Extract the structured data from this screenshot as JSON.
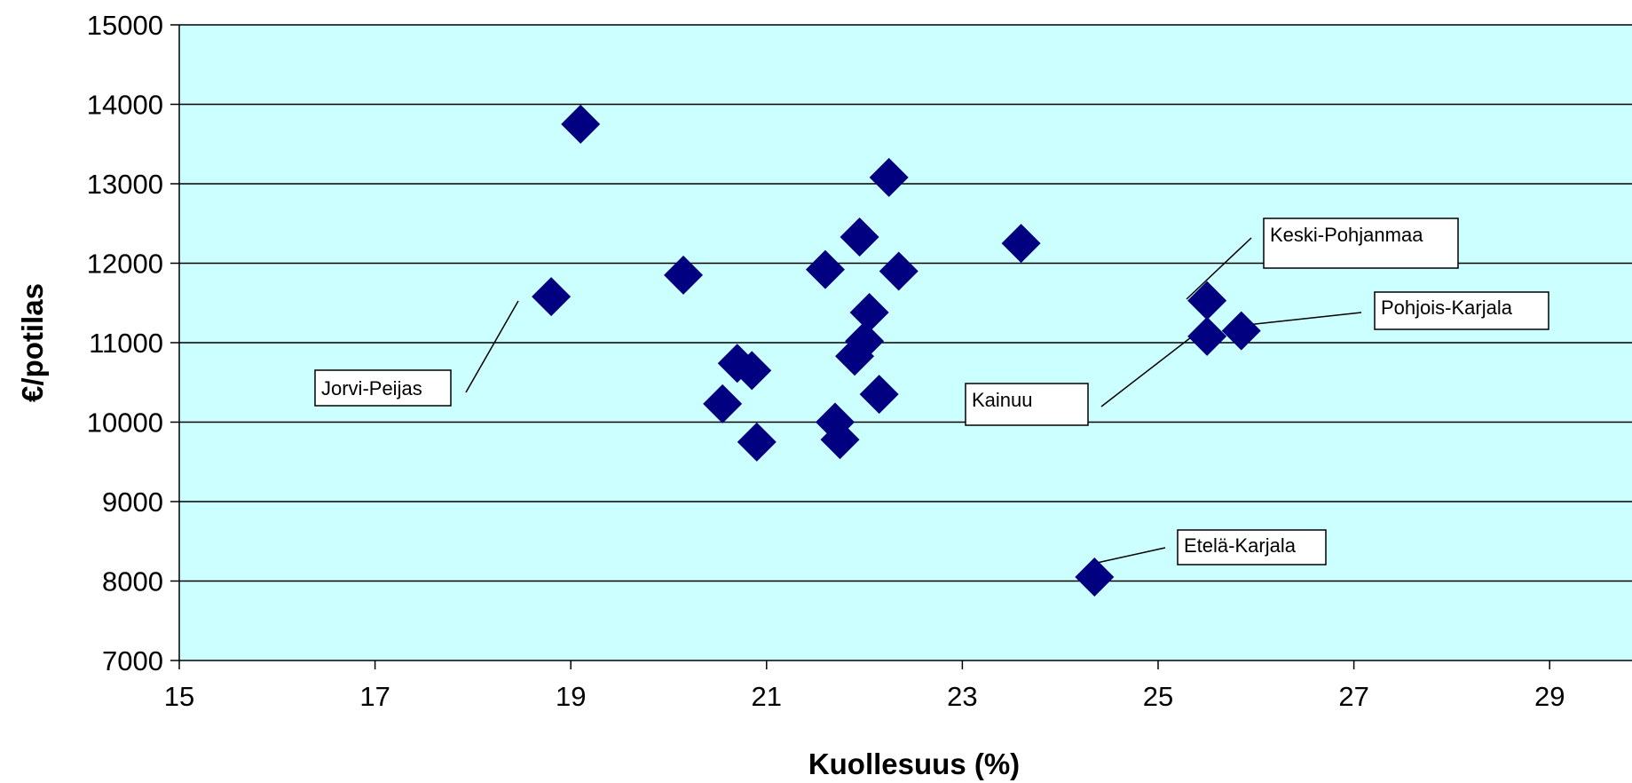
{
  "chart_data": {
    "type": "scatter",
    "xlabel": "Kuollesuus (%)",
    "ylabel": "€/potilas",
    "xlim": [
      15,
      30
    ],
    "ylim": [
      7000,
      15000
    ],
    "x_ticks": [
      "15",
      "17",
      "19",
      "21",
      "23",
      "25",
      "27",
      "29"
    ],
    "y_ticks": [
      "15000",
      "14000",
      "13000",
      "12000",
      "11000",
      "10000",
      "9000",
      "8000",
      "7000"
    ],
    "grid": "horizontal",
    "plot_background": "#ccffff",
    "marker_color": "#000080",
    "marker": "diamond",
    "points": [
      {
        "x": 19.1,
        "y": 13750
      },
      {
        "x": 18.8,
        "y": 11580
      },
      {
        "x": 20.15,
        "y": 11850
      },
      {
        "x": 20.7,
        "y": 10740
      },
      {
        "x": 20.85,
        "y": 10650
      },
      {
        "x": 20.55,
        "y": 10230
      },
      {
        "x": 20.9,
        "y": 9750
      },
      {
        "x": 21.6,
        "y": 11920
      },
      {
        "x": 21.7,
        "y": 10000
      },
      {
        "x": 21.75,
        "y": 9780
      },
      {
        "x": 21.9,
        "y": 10830
      },
      {
        "x": 22.0,
        "y": 11020
      },
      {
        "x": 22.05,
        "y": 11380
      },
      {
        "x": 21.95,
        "y": 12330
      },
      {
        "x": 22.15,
        "y": 10350
      },
      {
        "x": 22.25,
        "y": 13080
      },
      {
        "x": 22.35,
        "y": 11900
      },
      {
        "x": 23.6,
        "y": 12250
      },
      {
        "x": 24.35,
        "y": 8050
      },
      {
        "x": 25.5,
        "y": 11530
      },
      {
        "x": 25.5,
        "y": 11080
      },
      {
        "x": 25.85,
        "y": 11150
      }
    ],
    "annotations": [
      {
        "text": "Jorvi-Peijas"
      },
      {
        "text": "Keski-Pohjanmaa"
      },
      {
        "text": "Pohjois-Karjala"
      },
      {
        "text": "Kainuu"
      },
      {
        "text": "Etelä-Karjala"
      }
    ]
  }
}
